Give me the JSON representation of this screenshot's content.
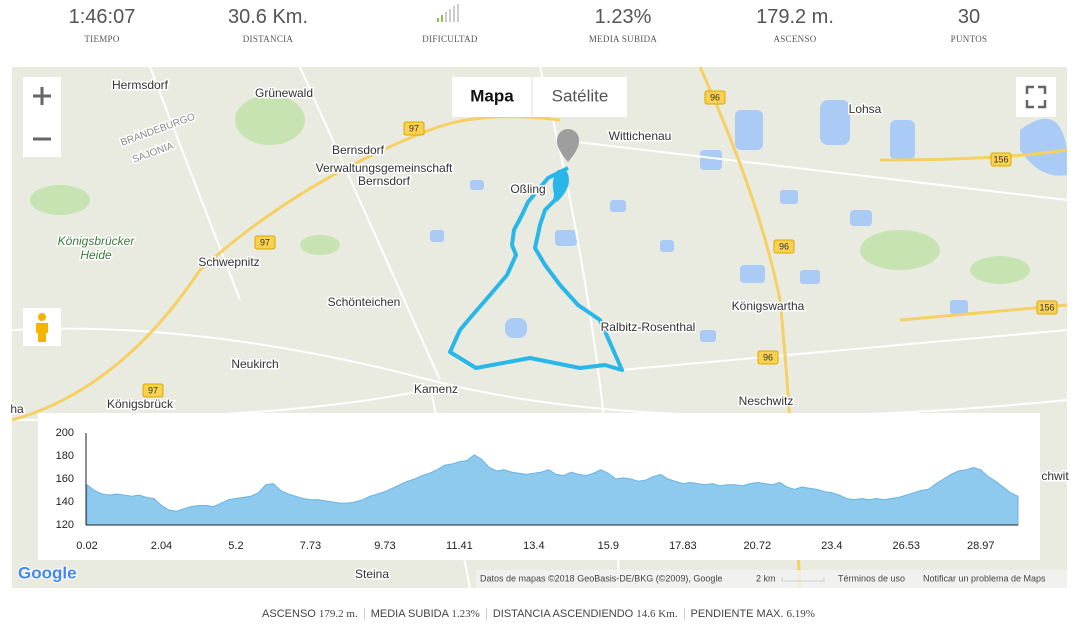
{
  "stats": [
    {
      "value": "1:46:07",
      "label": "TIEMPO"
    },
    {
      "value": "30.6 Km.",
      "label": "DISTANCIA"
    },
    {
      "label": "DIFICULTAD"
    },
    {
      "value": "1.23%",
      "label": "MEDIA SUBIDA"
    },
    {
      "value": "179.2 m.",
      "label": "ASCENSO"
    },
    {
      "value": "30",
      "label": "PUNTOS"
    }
  ],
  "map": {
    "map_type_buttons": [
      "Mapa",
      "Satélite"
    ],
    "places": [
      "Hermsdorf",
      "Grünewald",
      "BRANDEBURGO",
      "SAJONIA",
      "Königsbrücker",
      "Heide",
      "Bernsdorf",
      "Verwaltungsgemeinschaft",
      "Bernsdorf",
      "Oßling",
      "Wittichenau",
      "Lohsa",
      "Schwepnitz",
      "Schönteichen",
      "Königswartha",
      "Ralbitz-Rosenthal",
      "Neukirch",
      "Kamenz",
      "Königsbrück",
      "Neschwitz",
      "Steina",
      "ha",
      "chwit"
    ],
    "roads": [
      "97",
      "97",
      "97",
      "96",
      "96",
      "96",
      "156",
      "156"
    ],
    "logo": "Google",
    "attribution": "Datos de mapas ©2018 GeoBasis-DE/BKG (©2009), Google",
    "scale": "2 km",
    "terms": "Términos de uso",
    "report": "Notificar un problema de Maps"
  },
  "chart_data": {
    "type": "area",
    "color": "#8ec9ee",
    "categories": [
      "0.02",
      null,
      null,
      null,
      null,
      null,
      null,
      null,
      null,
      null,
      "2.04",
      null,
      null,
      null,
      null,
      null,
      null,
      null,
      null,
      null,
      "5.2",
      null,
      null,
      null,
      null,
      null,
      null,
      null,
      null,
      null,
      "7.73",
      null,
      null,
      null,
      null,
      null,
      null,
      null,
      null,
      null,
      "9.73",
      null,
      null,
      null,
      null,
      null,
      null,
      null,
      null,
      null,
      "11.41",
      null,
      null,
      null,
      null,
      null,
      null,
      null,
      null,
      null,
      "13.4",
      null,
      null,
      null,
      null,
      null,
      null,
      null,
      null,
      null,
      "15.9",
      null,
      null,
      null,
      null,
      null,
      null,
      null,
      null,
      null,
      "17.83",
      null,
      null,
      null,
      null,
      null,
      null,
      null,
      null,
      null,
      "20.72",
      null,
      null,
      null,
      null,
      null,
      null,
      null,
      null,
      null,
      "23.4",
      null,
      null,
      null,
      null,
      null,
      null,
      null,
      null,
      null,
      "26.53",
      null,
      null,
      null,
      null,
      null,
      null,
      null,
      null,
      null,
      "28.97",
      null,
      null,
      null,
      null,
      null
    ],
    "values": [
      155,
      150,
      147,
      146,
      147,
      146,
      145,
      146,
      144,
      143,
      137,
      133,
      132,
      134,
      136,
      137,
      137,
      136,
      139,
      142,
      143,
      144,
      145,
      148,
      155,
      156,
      150,
      147,
      145,
      143,
      142,
      142,
      141,
      140,
      139,
      139,
      140,
      142,
      145,
      147,
      149,
      152,
      155,
      158,
      160,
      163,
      165,
      168,
      172,
      173,
      175,
      176,
      181,
      177,
      170,
      167,
      168,
      166,
      165,
      164,
      165,
      166,
      168,
      164,
      163,
      166,
      164,
      163,
      165,
      168,
      165,
      160,
      161,
      160,
      158,
      159,
      162,
      164,
      160,
      158,
      156,
      157,
      156,
      155,
      156,
      154,
      155,
      155,
      154,
      156,
      157,
      156,
      155,
      157,
      153,
      151,
      153,
      152,
      151,
      149,
      148,
      146,
      143,
      142,
      143,
      142,
      143,
      142,
      143,
      144,
      146,
      148,
      150,
      151,
      156,
      160,
      164,
      167,
      168,
      170,
      168,
      162,
      158,
      153,
      148,
      145
    ],
    "ylim": [
      120,
      200
    ],
    "yticks": [
      120,
      140,
      160,
      180,
      200
    ]
  },
  "summary": [
    {
      "label": "ASCENSO",
      "value": "179.2 m."
    },
    {
      "label": "MEDIA SUBIDA",
      "value": "1.23%"
    },
    {
      "label": "DISTANCIA ASCENDIENDO",
      "value": "14.6 Km."
    },
    {
      "label": "PENDIENTE MAX.",
      "value": "6.19%"
    }
  ]
}
